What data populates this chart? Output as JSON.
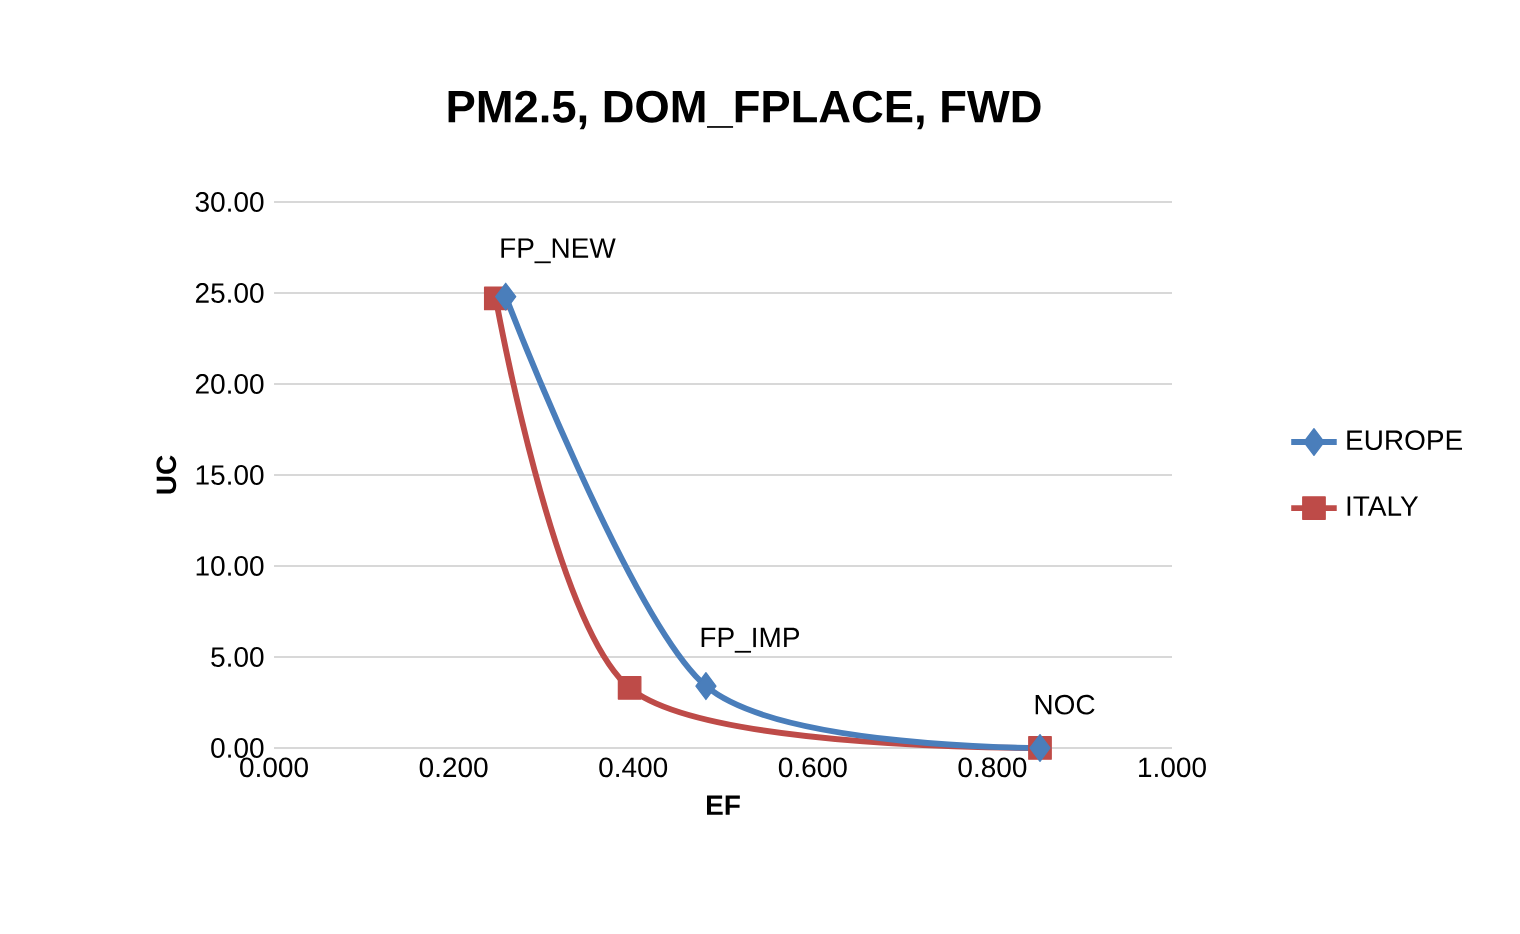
{
  "chart_data": {
    "type": "line",
    "title": "PM2.5, DOM_FPLACE, FWD",
    "xlabel": "EF",
    "ylabel": "UC",
    "xlim": [
      0,
      1
    ],
    "ylim": [
      0,
      30
    ],
    "xticks": [
      {
        "value": 0,
        "label": "0.000"
      },
      {
        "value": 0.2,
        "label": "0.200"
      },
      {
        "value": 0.4,
        "label": "0.400"
      },
      {
        "value": 0.6,
        "label": "0.600"
      },
      {
        "value": 0.8,
        "label": "0.800"
      },
      {
        "value": 1,
        "label": "1.000"
      }
    ],
    "yticks": [
      {
        "value": 0,
        "label": "0.00"
      },
      {
        "value": 5,
        "label": "5.00"
      },
      {
        "value": 10,
        "label": "10.00"
      },
      {
        "value": 15,
        "label": "15.00"
      },
      {
        "value": 20,
        "label": "20.00"
      },
      {
        "value": 25,
        "label": "25.00"
      },
      {
        "value": 30,
        "label": "30.00"
      }
    ],
    "grid": "y",
    "legend": "right",
    "series": [
      {
        "name": "EUROPE",
        "color": "#4a7ebb",
        "marker": "diamond",
        "x": [
          0.258,
          0.481,
          0.853
        ],
        "values": [
          24.8,
          3.4,
          0
        ]
      },
      {
        "name": "ITALY",
        "color": "#be4b48",
        "marker": "square",
        "x": [
          0.247,
          0.396,
          0.853
        ],
        "values": [
          24.7,
          3.3,
          0
        ]
      }
    ],
    "annotations": [
      {
        "text": "FP_NEW",
        "x": 0.258,
        "y": 24.8
      },
      {
        "text": "FP_IMP",
        "x": 0.481,
        "y": 3.4
      },
      {
        "text": "NOC",
        "x": 0.853,
        "y": 0
      }
    ]
  }
}
